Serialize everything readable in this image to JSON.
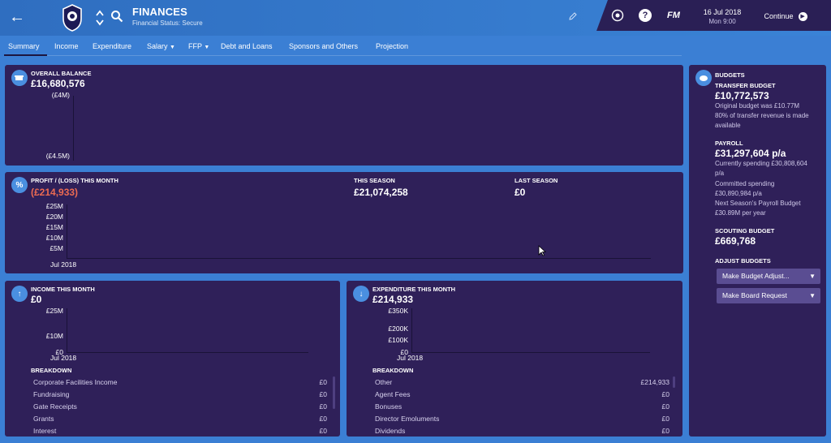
{
  "header": {
    "title": "FINANCES",
    "subtitle": "Financial Status: Secure",
    "fm_logo": "FM",
    "date": "16 Jul 2018",
    "time": "Mon 9:00",
    "continue_label": "Continue",
    "help_glyph": "?"
  },
  "tabs": [
    {
      "label": "Summary"
    },
    {
      "label": "Income"
    },
    {
      "label": "Expenditure"
    },
    {
      "label": "Salary"
    },
    {
      "label": "FFP"
    },
    {
      "label": "Debt and Loans"
    },
    {
      "label": "Sponsors and Others"
    },
    {
      "label": "Projection"
    }
  ],
  "overall_balance": {
    "label": "OVERALL BALANCE",
    "value": "£16,680,576",
    "ticks": [
      "(£4M)",
      "(£4.5M)"
    ]
  },
  "profit": {
    "label": "PROFIT / (LOSS) THIS MONTH",
    "value": "(£214,933)",
    "this_season_label": "THIS SEASON",
    "this_season_value": "£21,074,258",
    "last_season_label": "LAST SEASON",
    "last_season_value": "£0",
    "ticks": [
      "£25M",
      "£20M",
      "£15M",
      "£10M",
      "£5M"
    ],
    "x_label": "Jul 2018"
  },
  "income": {
    "label": "INCOME THIS MONTH",
    "value": "£0",
    "ticks": [
      "£25M",
      "£10M",
      "£0"
    ],
    "x_label": "Jul 2018",
    "breakdown_label": "BREAKDOWN",
    "rows": [
      {
        "name": "Corporate Facilities Income",
        "value": "£0"
      },
      {
        "name": "Fundraising",
        "value": "£0"
      },
      {
        "name": "Gate Receipts",
        "value": "£0"
      },
      {
        "name": "Grants",
        "value": "£0"
      },
      {
        "name": "Interest",
        "value": "£0"
      }
    ]
  },
  "expenditure": {
    "label": "EXPENDITURE THIS MONTH",
    "value": "£214,933",
    "ticks": [
      "£350K",
      "£200K",
      "£100K",
      "£0"
    ],
    "x_label": "Jul 2018",
    "breakdown_label": "BREAKDOWN",
    "rows": [
      {
        "name": "Other",
        "value": "£214,933"
      },
      {
        "name": "Agent Fees",
        "value": "£0"
      },
      {
        "name": "Bonuses",
        "value": "£0"
      },
      {
        "name": "Director Emoluments",
        "value": "£0"
      },
      {
        "name": "Dividends",
        "value": "£0"
      }
    ]
  },
  "budgets": {
    "label": "BUDGETS",
    "transfer_label": "TRANSFER BUDGET",
    "transfer_value": "£10,772,573",
    "transfer_note1": "Original budget was £10.77M",
    "transfer_note2": "80% of transfer revenue is made",
    "transfer_note3": "available",
    "payroll_label": "PAYROLL",
    "payroll_value": "£31,297,604 p/a",
    "payroll_note1": "Currently spending £30,808,604",
    "payroll_note2": "p/a",
    "payroll_note3": "Committed spending",
    "payroll_note4": "£30,890,984 p/a",
    "payroll_note5": "Next Season's Payroll Budget",
    "payroll_note6": "£30.89M per year",
    "scouting_label": "SCOUTING BUDGET",
    "scouting_value": "£669,768",
    "adjust_label": "ADJUST BUDGETS",
    "btn_adjust": "Make Budget Adjust...",
    "btn_board": "Make Board Request"
  },
  "colors": {
    "background": "#3b7fd4",
    "panel": "#2f2059",
    "negative": "#ec6b52",
    "icon_badge": "#4a8fe0"
  }
}
